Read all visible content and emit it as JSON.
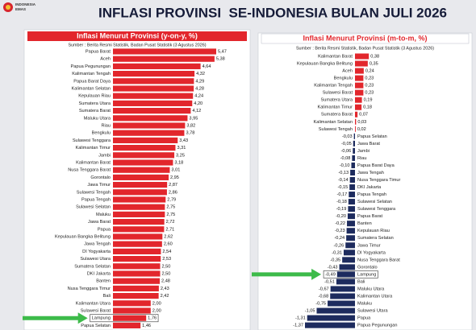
{
  "header": {
    "logo": [
      "INDONESIA",
      "EMAS"
    ],
    "title": "INFLASI PROVINSI  SE-INDONESIA BULAN JULI 2026"
  },
  "chart_data": [
    {
      "type": "bar",
      "orientation": "horizontal",
      "title": "Inflasi Menurut Provinsi (y-on-y, %)",
      "source": "Sumber : Berita Resmi Statistik, Badan Pusat Statistik (3 Agustus 2026)",
      "categories": [
        "Papua Barat",
        "Aceh",
        "Papua Pegunungan",
        "Kalimantan Tengah",
        "Papua Barat Daya",
        "Kalimantan Selatan",
        "Kepulauan Riau",
        "Sumatera Utara",
        "Sumatera Barat",
        "Maluku Utara",
        "Riau",
        "Bengkulu",
        "Sulawesi Tenggara",
        "Kalimantan Timur",
        "Jambi",
        "Kalimantan Barat",
        "Nusa Tenggara Barat",
        "Gorontalo",
        "Jawa Timur",
        "Sulawesi Tengah",
        "Papua Tengah",
        "Sulawesi Selatan",
        "Maluku",
        "Jawa Barat",
        "Papua",
        "Kepulauan Bangka Belitung",
        "Jawa Tengah",
        "DI Yogyakarta",
        "Sulawesi Utara",
        "Sumatera Selatan",
        "DKI Jakarta",
        "Banten",
        "Nusa Tenggara Timur",
        "Bali",
        "Kalimantan Utara",
        "Sulawesi Barat",
        "Lampung",
        "Papua Selatan"
      ],
      "values": [
        5.47,
        5.38,
        4.64,
        4.32,
        4.29,
        4.28,
        4.24,
        4.2,
        4.12,
        3.95,
        3.82,
        3.78,
        3.43,
        3.31,
        3.25,
        3.18,
        3.01,
        2.95,
        2.87,
        2.86,
        2.79,
        2.75,
        2.75,
        2.72,
        2.71,
        2.62,
        2.6,
        2.54,
        2.53,
        2.5,
        2.5,
        2.48,
        2.43,
        2.42,
        2.0,
        2.0,
        1.76,
        1.46
      ],
      "value_labels": [
        "5,47",
        "5,38",
        "4,64",
        "4,32",
        "4,29",
        "4,28",
        "4,24",
        "4,20",
        "4,12",
        "3,95",
        "3,82",
        "3,78",
        "3,43",
        "3,31",
        "3,25",
        "3,18",
        "3,01",
        "2,95",
        "2,87",
        "2,86",
        "2,79",
        "2,75",
        "2,75",
        "2,72",
        "2,71",
        "2,62",
        "2,60",
        "2,54",
        "2,53",
        "2,50",
        "2,50",
        "2,48",
        "2,43",
        "2,42",
        "2,00",
        "2,00",
        "1,76",
        "1,46"
      ],
      "color": "#e2262c",
      "negative_color": "#1d2b5e",
      "highlight": "Lampung"
    },
    {
      "type": "bar",
      "orientation": "horizontal",
      "title": "Inflasi Menurut Provinsi (m-to-m, %)",
      "source": "Sumber : Berita Resmi Statistik, Badan Pusat Statistik (3 Agustus 2026)",
      "categories": [
        "Kalimantan Barat",
        "Kepulauan Bangka Belitung",
        "Aceh",
        "Bengkulu",
        "Kalimantan Tengah",
        "Sulawesi Barat",
        "Sumatera Utara",
        "Kalimantan Timur",
        "Sumatera Barat",
        "Kalimantan Selatan",
        "Sulawesi Tengah",
        "Papua Selatan",
        "Jawa Barat",
        "Jambi",
        "Riau",
        "Papua Barat Daya",
        "Jawa Tengah",
        "Nusa Tenggara Timur",
        "DKI Jakarta",
        "Papua Tengah",
        "Sulawesi Selatan",
        "Sulawesi Tenggara",
        "Papua Barat",
        "Banten",
        "Kepulauan Riau",
        "Sumatera Selatan",
        "Jawa Timur",
        "DI Yogyakarta",
        "Nusa Tenggara Barat",
        "Gorontalo",
        "Lampung",
        "Bali",
        "Maluku Utara",
        "Kalimantan Utara",
        "Maluku",
        "Sulawesi Utara",
        "Papua",
        "Papua Pegunungan"
      ],
      "values": [
        0.38,
        0.35,
        0.24,
        0.23,
        0.23,
        0.23,
        0.19,
        0.18,
        0.07,
        0.03,
        0.02,
        -0.03,
        -0.05,
        -0.06,
        -0.08,
        -0.1,
        -0.13,
        -0.14,
        -0.15,
        -0.17,
        -0.18,
        -0.19,
        -0.2,
        -0.22,
        -0.23,
        -0.24,
        -0.26,
        -0.31,
        -0.35,
        -0.43,
        -0.49,
        -0.51,
        -0.67,
        -0.68,
        -0.75,
        -1.05,
        -1.31,
        -1.37
      ],
      "value_labels": [
        "0,38",
        "0,35",
        "0,24",
        "0,23",
        "0,23",
        "0,23",
        "0,19",
        "0,18",
        "0,07",
        "0,03",
        "0,02",
        "-0,03",
        "-0,05",
        "-0,06",
        "-0,08",
        "-0,10",
        "-0,13",
        "-0,14",
        "-0,15",
        "-0,17",
        "-0,18",
        "-0,19",
        "-0,20",
        "-0,22",
        "-0,23",
        "-0,24",
        "-0,26",
        "-0,31",
        "-0,35",
        "-0,43",
        "-0,49",
        "-0,51",
        "-0,67",
        "-0,68",
        "-0,75",
        "-1,05",
        "-1,31",
        "-1,37"
      ],
      "color": "#e2262c",
      "negative_color": "#1d2b5e",
      "highlight": "Lampung"
    }
  ]
}
